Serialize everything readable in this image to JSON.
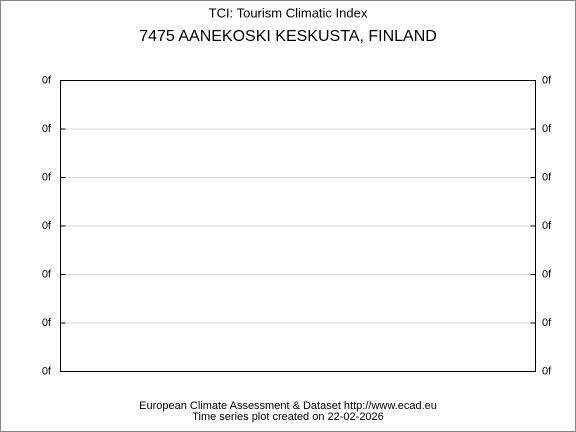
{
  "chart_data": {
    "type": "line",
    "title": "TCI: Tourism Climatic Index",
    "subtitle": "7475 AANEKOSKI KESKUSTA, FINLAND",
    "footer": [
      "European Climate Assessment & Dataset  http://www.ecad.eu",
      "Time series plot created on 22-02-2026"
    ],
    "series": [],
    "ylim": [
      0,
      6
    ],
    "yticks": [
      {
        "value": 0,
        "label": "0f"
      },
      {
        "value": 1,
        "label": "0f"
      },
      {
        "value": 2,
        "label": "0f"
      },
      {
        "value": 3,
        "label": "0f"
      },
      {
        "value": 4,
        "label": "0f"
      },
      {
        "value": 5,
        "label": "0f"
      },
      {
        "value": 6,
        "label": "0f"
      }
    ],
    "grid": true
  }
}
